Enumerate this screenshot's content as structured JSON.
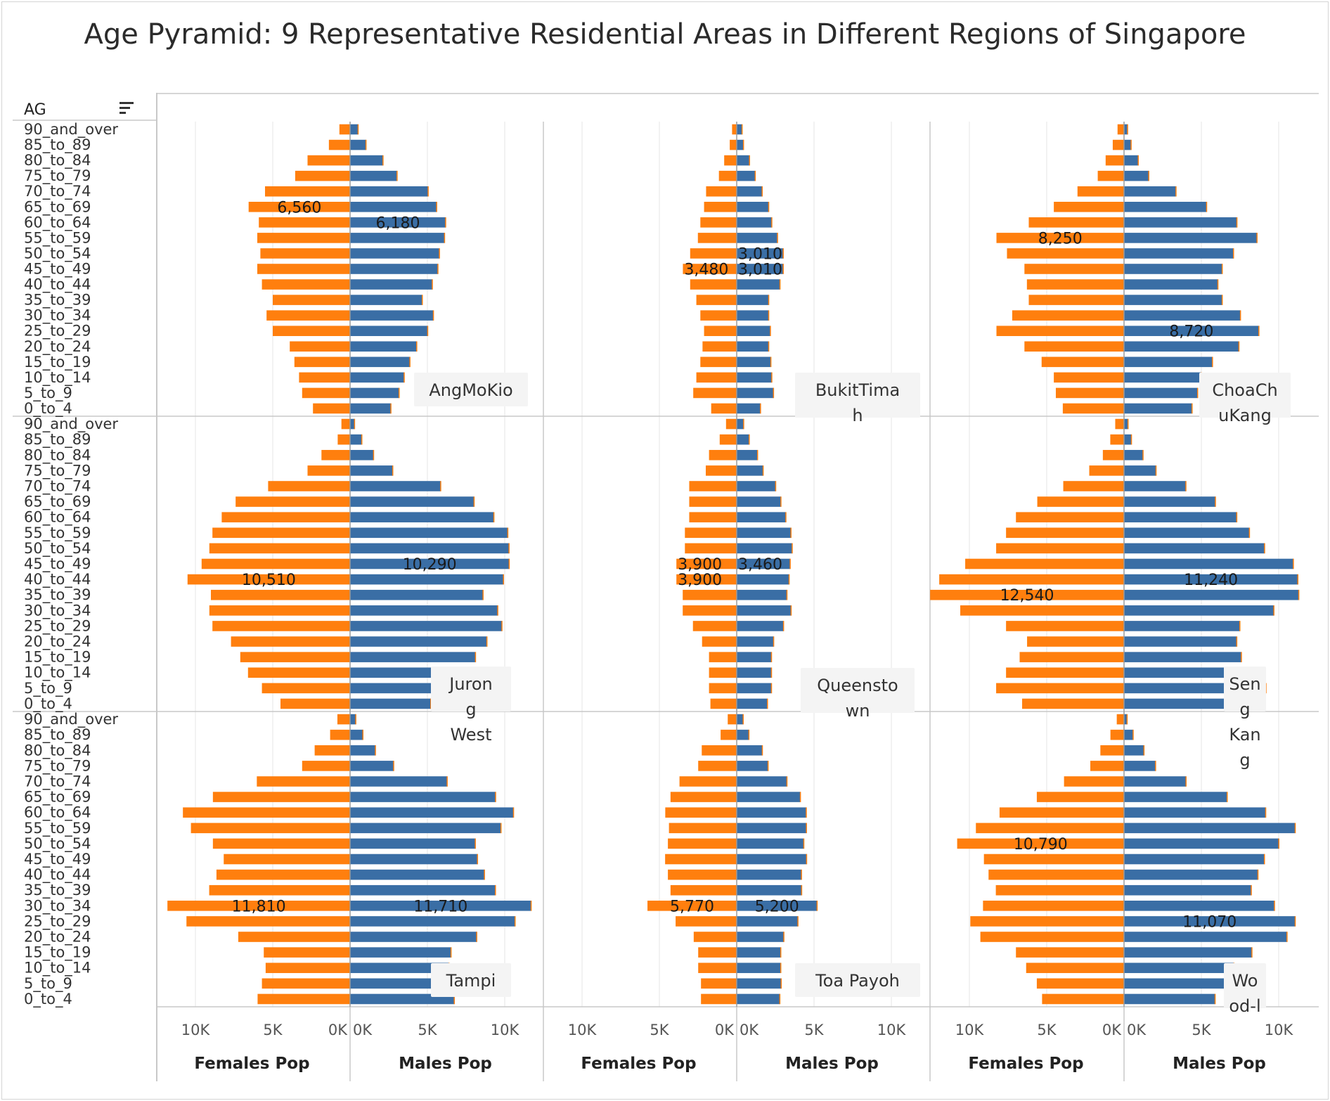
{
  "title": "Age Pyramid: 9 Representative Residential Areas in Different Regions of Singapore",
  "row_header": "AG",
  "colors": {
    "females": "#ff7f0e",
    "males": "#3a6ea5",
    "grid": "#e6e6e6",
    "divider": "#c8c8c8"
  },
  "icons": {
    "sort": "sort-icon"
  },
  "chart_data": {
    "type": "bar",
    "orientation": "horizontal",
    "layout": "small-multiples age pyramid",
    "categories": [
      "90_and_over",
      "85_to_89",
      "80_to_84",
      "75_to_79",
      "70_to_74",
      "65_to_69",
      "60_to_64",
      "55_to_59",
      "50_to_54",
      "45_to_49",
      "40_to_44",
      "35_to_39",
      "30_to_34",
      "25_to_29",
      "20_to_24",
      "15_to_19",
      "10_to_14",
      "5_to_9",
      "0_to_4"
    ],
    "axes": {
      "females": {
        "title": "Females Pop",
        "ticks": [
          "10K",
          "5K",
          "0K"
        ],
        "range": [
          12500,
          0
        ]
      },
      "males": {
        "title": "Males Pop",
        "ticks": [
          "0K",
          "5K",
          "10K"
        ],
        "range": [
          0,
          12500
        ]
      }
    },
    "panels": [
      {
        "name_lines": [
          "AngMoKio"
        ],
        "females": [
          690,
          1370,
          2750,
          3550,
          5500,
          6560,
          5900,
          6000,
          5800,
          6000,
          5700,
          5000,
          5400,
          5000,
          3900,
          3600,
          3300,
          3100,
          2400
        ],
        "males": [
          520,
          1030,
          2130,
          3040,
          5050,
          5600,
          6180,
          6110,
          5780,
          5680,
          5320,
          4670,
          5390,
          5020,
          4310,
          3870,
          3500,
          3170,
          2640
        ],
        "labels": [
          {
            "series": "females",
            "index": 5,
            "text": "6,560"
          },
          {
            "series": "males",
            "index": 6,
            "text": "6,180"
          }
        ]
      },
      {
        "name_lines": [
          "BukitTima",
          "h"
        ],
        "females": [
          300,
          450,
          810,
          1150,
          1980,
          2110,
          2350,
          2510,
          3010,
          3480,
          3010,
          2610,
          2350,
          2110,
          2210,
          2350,
          2610,
          2810,
          1650
        ],
        "males": [
          350,
          440,
          830,
          1200,
          1650,
          2070,
          2270,
          2640,
          3010,
          3010,
          2800,
          2070,
          2070,
          2180,
          2070,
          2210,
          2270,
          2380,
          1540
        ],
        "labels": [
          {
            "series": "males",
            "index": 8,
            "text": "3,010"
          },
          {
            "series": "females",
            "index": 9,
            "text": "3,480"
          },
          {
            "series": "males",
            "index": 9,
            "text": "3,010"
          }
        ]
      },
      {
        "name_lines": [
          "ChoaCh",
          "uKang"
        ],
        "females": [
          420,
          730,
          1190,
          1700,
          3010,
          4540,
          6160,
          8250,
          7570,
          6440,
          6280,
          6160,
          7230,
          8250,
          6440,
          5330,
          4540,
          4410,
          3960
        ],
        "males": [
          230,
          460,
          920,
          1600,
          3360,
          5340,
          7300,
          8600,
          7080,
          6350,
          6070,
          6350,
          7530,
          8720,
          7430,
          5720,
          4990,
          4760,
          4400
        ],
        "labels": [
          {
            "series": "females",
            "index": 7,
            "text": "8,250"
          },
          {
            "series": "males",
            "index": 13,
            "text": "8,720"
          }
        ]
      },
      {
        "name_lines": [
          "Juron",
          "g",
          "West"
        ],
        "females": [
          560,
          800,
          1850,
          2750,
          5300,
          7400,
          8300,
          8900,
          9100,
          9600,
          10510,
          9000,
          9100,
          8900,
          7700,
          7100,
          6600,
          5700,
          4500
        ],
        "males": [
          290,
          760,
          1520,
          2760,
          5860,
          8020,
          9300,
          10200,
          10280,
          10290,
          9920,
          8600,
          9550,
          9820,
          8850,
          8110,
          7510,
          6410,
          5220
        ],
        "labels": [
          {
            "series": "females",
            "index": 10,
            "text": "10,510"
          },
          {
            "series": "males",
            "index": 9,
            "text": "10,290"
          }
        ]
      },
      {
        "name_lines": [
          "Queensto",
          "wn"
        ],
        "females": [
          690,
          1100,
          1790,
          2000,
          3070,
          3070,
          3070,
          3350,
          3350,
          3900,
          3900,
          3490,
          3490,
          2830,
          2240,
          1790,
          1790,
          1790,
          1700
        ],
        "males": [
          450,
          810,
          1350,
          1710,
          2520,
          2860,
          3180,
          3510,
          3590,
          3460,
          3390,
          3250,
          3520,
          3030,
          2390,
          2250,
          2250,
          2250,
          1990
        ],
        "labels": [
          {
            "series": "females",
            "index": 9,
            "text": "3,900"
          },
          {
            "series": "males",
            "index": 9,
            "text": "3,460"
          },
          {
            "series": "females",
            "index": 10,
            "text": "3,900"
          }
        ]
      },
      {
        "name_lines": [
          "Sen",
          "g",
          "Kan",
          "g"
        ],
        "females": [
          570,
          890,
          1370,
          2250,
          3930,
          5610,
          6990,
          7630,
          8270,
          10270,
          11950,
          12540,
          10590,
          7630,
          6270,
          6750,
          7630,
          8270,
          6590
        ],
        "males": [
          260,
          480,
          1230,
          2070,
          4000,
          5910,
          7290,
          8110,
          9090,
          10950,
          11240,
          11300,
          9690,
          7490,
          7290,
          7590,
          8490,
          9180,
          7790
        ],
        "labels": [
          {
            "series": "females",
            "index": 11,
            "text": "12,540"
          },
          {
            "series": "males",
            "index": 10,
            "text": "11,240"
          }
        ]
      },
      {
        "name_lines": [
          "Tampi"
        ],
        "females": [
          820,
          1290,
          2290,
          3100,
          6030,
          8870,
          10810,
          10290,
          8870,
          8170,
          8640,
          9110,
          11810,
          10580,
          7230,
          5580,
          5460,
          5700,
          5980
        ],
        "males": [
          370,
          830,
          1640,
          2820,
          6280,
          9410,
          10570,
          9760,
          8100,
          8240,
          8690,
          9400,
          11710,
          10670,
          8190,
          6530,
          6400,
          6590,
          6740
        ],
        "labels": [
          {
            "series": "females",
            "index": 12,
            "text": "11,810"
          },
          {
            "series": "males",
            "index": 12,
            "text": "11,710"
          }
        ]
      },
      {
        "name_lines": [
          "Toa Payoh"
        ],
        "females": [
          580,
          1040,
          2260,
          2490,
          3700,
          4280,
          4620,
          4380,
          4450,
          4630,
          4450,
          4280,
          5770,
          3950,
          2780,
          2490,
          2490,
          2310,
          2310
        ],
        "males": [
          420,
          790,
          1660,
          2030,
          3250,
          4120,
          4500,
          4510,
          4340,
          4520,
          4190,
          4200,
          5200,
          3960,
          3050,
          2850,
          2850,
          2880,
          2790
        ],
        "labels": [
          {
            "series": "females",
            "index": 12,
            "text": "5,770"
          },
          {
            "series": "males",
            "index": 12,
            "text": "5,200"
          }
        ]
      },
      {
        "name_lines": [
          "Wo",
          "od-l"
        ],
        "females": [
          470,
          880,
          1530,
          2180,
          3880,
          5640,
          8050,
          9580,
          10790,
          9060,
          8760,
          8290,
          9120,
          9940,
          9290,
          6990,
          6330,
          5640,
          5300
        ],
        "males": [
          200,
          590,
          1290,
          2040,
          4010,
          6670,
          9160,
          11070,
          10010,
          9080,
          8660,
          8230,
          9730,
          11070,
          10540,
          8270,
          7110,
          6550,
          5890
        ],
        "labels": [
          {
            "series": "females",
            "index": 8,
            "text": "10,790"
          },
          {
            "series": "males",
            "index": 13,
            "text": "11,070"
          }
        ]
      }
    ]
  }
}
